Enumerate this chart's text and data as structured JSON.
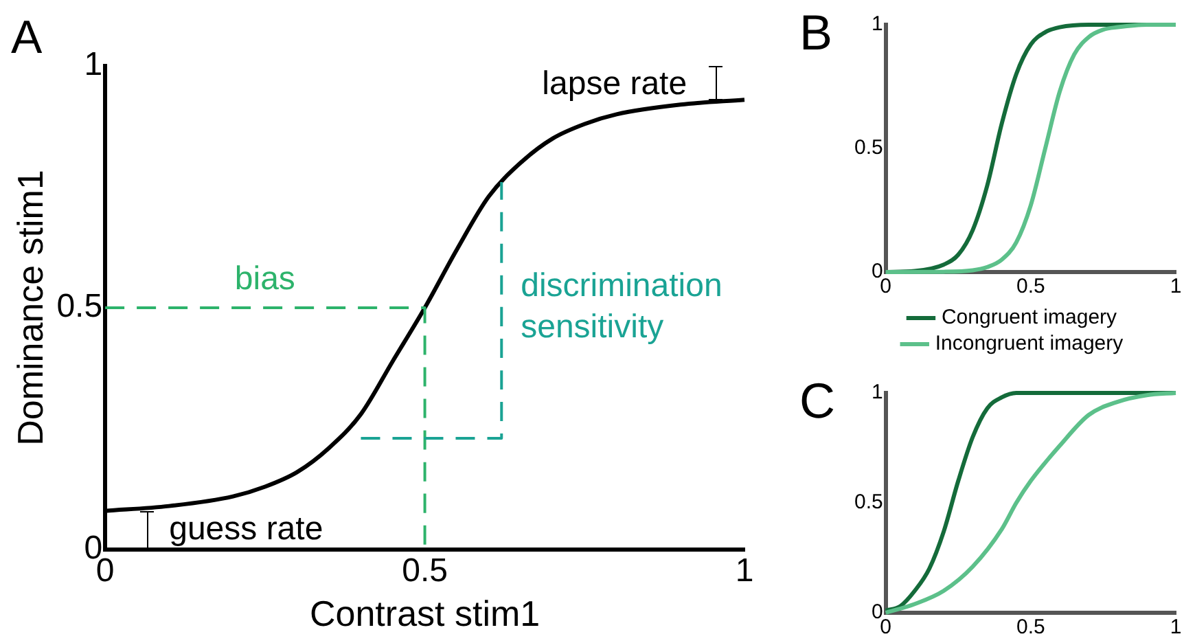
{
  "chart_data": [
    {
      "type": "line",
      "title": "A",
      "xlabel": "Contrast stim1",
      "ylabel": "Dominance stim1",
      "xlim": [
        0,
        1
      ],
      "xticks": [
        0,
        0.5,
        1
      ],
      "ylim": [
        0,
        1
      ],
      "yticks": [
        0,
        0.5,
        1
      ],
      "grid": false,
      "legend": false,
      "marker": "none",
      "series": [
        {
          "color": "#000000",
          "x": [
            0,
            0.1,
            0.2,
            0.25,
            0.3,
            0.35,
            0.4,
            0.45,
            0.5,
            0.55,
            0.6,
            0.65,
            0.7,
            0.75,
            0.8,
            0.9,
            1
          ],
          "values": [
            0.08,
            0.09,
            0.11,
            0.13,
            0.16,
            0.21,
            0.28,
            0.39,
            0.5,
            0.62,
            0.73,
            0.8,
            0.85,
            0.88,
            0.9,
            0.92,
            0.93
          ]
        },
        {
          "color": "#2db36b",
          "x": [
            0,
            0.5,
            0.5
          ],
          "values": [
            0.5,
            0.5,
            0
          ],
          "line_style": "dashed"
        },
        {
          "color": "#1aa394",
          "x": [
            0.4,
            0.62,
            0.62
          ],
          "values": [
            0.23,
            0.23,
            0.76
          ],
          "line_style": "dashed"
        }
      ],
      "annotations": [
        {
          "text": "bias",
          "x": 0.25,
          "y": 0.5
        },
        "discrimination sensitivity",
        "guess rate",
        "lapse rate"
      ]
    },
    {
      "type": "line",
      "title": "B",
      "xlim": [
        0,
        1
      ],
      "xticks": [
        0,
        0.5,
        1
      ],
      "ylim": [
        0,
        1
      ],
      "yticks": [
        0,
        0.5,
        1
      ],
      "grid": false,
      "legend": "bottom",
      "marker": "none",
      "series": [
        {
          "name": "Congruent imagery",
          "color": "#146b3a",
          "x": [
            0,
            0.1,
            0.2,
            0.25,
            0.3,
            0.35,
            0.4,
            0.45,
            0.5,
            0.55,
            0.6,
            0.7,
            1
          ],
          "values": [
            0,
            0.004,
            0.03,
            0.07,
            0.17,
            0.35,
            0.6,
            0.8,
            0.92,
            0.97,
            0.99,
            1,
            1
          ]
        },
        {
          "name": "Incongruent imagery",
          "color": "#5cc08a",
          "x": [
            0,
            0.2,
            0.3,
            0.35,
            0.4,
            0.45,
            0.5,
            0.55,
            0.6,
            0.65,
            0.7,
            0.75,
            0.8,
            0.9,
            1
          ],
          "values": [
            0,
            0.001,
            0.007,
            0.02,
            0.05,
            0.12,
            0.27,
            0.5,
            0.73,
            0.88,
            0.95,
            0.98,
            0.99,
            1,
            1
          ]
        }
      ]
    },
    {
      "type": "line",
      "title": "C",
      "xlim": [
        0,
        1
      ],
      "xticks": [
        0,
        0.5,
        1
      ],
      "ylim": [
        0,
        1
      ],
      "yticks": [
        0,
        0.5,
        1
      ],
      "grid": false,
      "legend": false,
      "marker": "none",
      "series": [
        {
          "color": "#146b3a",
          "x": [
            0,
            0.05,
            0.1,
            0.15,
            0.2,
            0.25,
            0.3,
            0.35,
            0.4,
            0.45,
            0.5,
            1
          ],
          "values": [
            0.01,
            0.03,
            0.1,
            0.2,
            0.37,
            0.6,
            0.8,
            0.93,
            0.98,
            1,
            1,
            1
          ]
        },
        {
          "color": "#5cc08a",
          "x": [
            0,
            0.1,
            0.2,
            0.3,
            0.4,
            0.45,
            0.5,
            0.6,
            0.7,
            0.8,
            0.9,
            1
          ],
          "values": [
            0,
            0.04,
            0.1,
            0.21,
            0.38,
            0.5,
            0.6,
            0.76,
            0.9,
            0.96,
            0.99,
            1
          ]
        }
      ]
    }
  ]
}
